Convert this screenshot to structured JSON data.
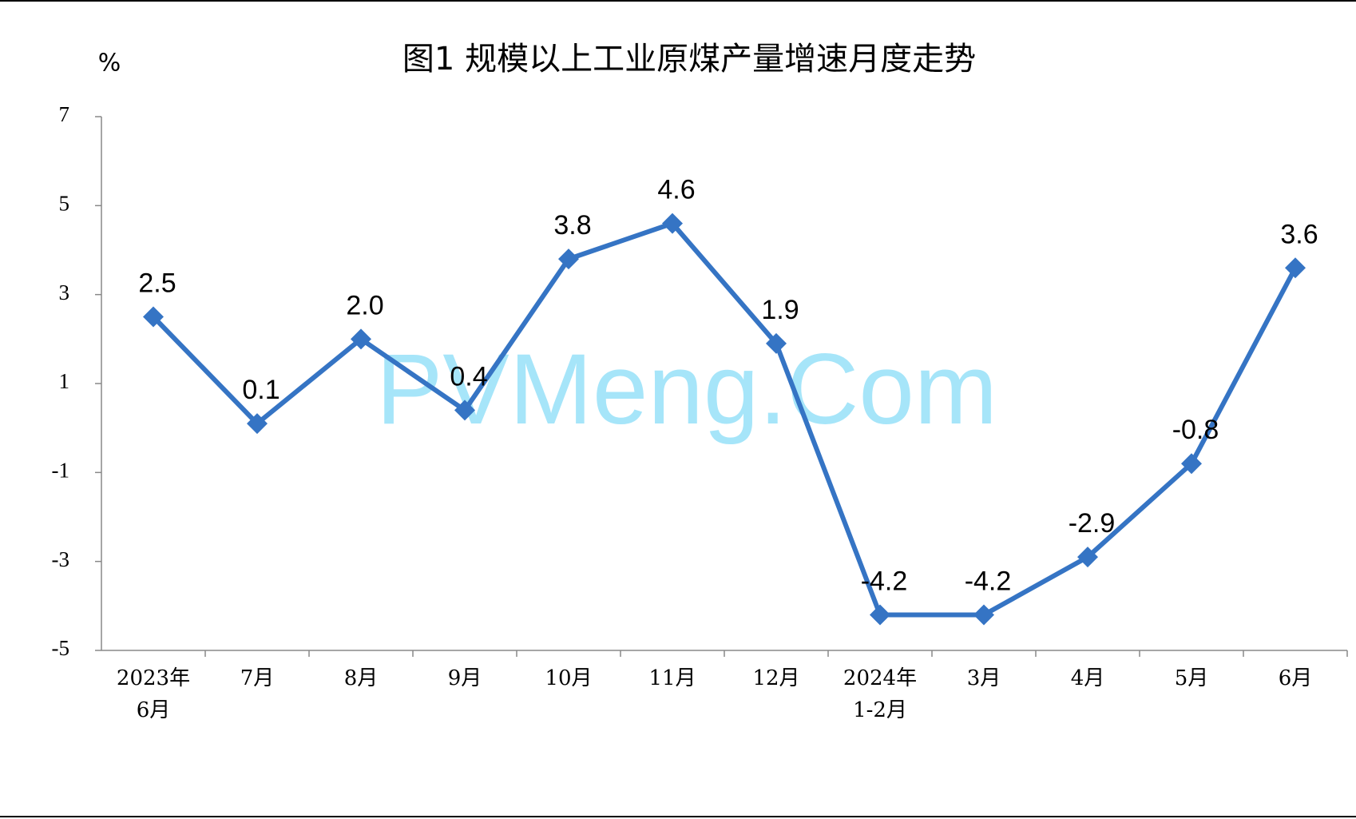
{
  "chart_data": {
    "type": "line",
    "title": "图1  规模以上工业原煤产量增速月度走势",
    "y_unit": "%",
    "watermark": "PVMeng.Com",
    "categories": [
      "2023年\n6月",
      "7月",
      "8月",
      "9月",
      "10月",
      "11月",
      "12月",
      "2024年\n1-2月",
      "3月",
      "4月",
      "5月",
      "6月"
    ],
    "values": [
      2.5,
      0.1,
      2.0,
      0.4,
      3.8,
      4.6,
      1.9,
      -4.2,
      -4.2,
      -2.9,
      -0.8,
      3.6
    ],
    "value_labels": [
      "2.5",
      "0.1",
      "2.0",
      "0.4",
      "3.8",
      "4.6",
      "1.9",
      "-4.2",
      "-4.2",
      "-2.9",
      "-0.8",
      "3.6"
    ],
    "color": "#3574c4",
    "ylim": [
      -5,
      7
    ],
    "yticks": [
      -5,
      -3,
      -1,
      1,
      3,
      5,
      7
    ],
    "grid": false
  }
}
